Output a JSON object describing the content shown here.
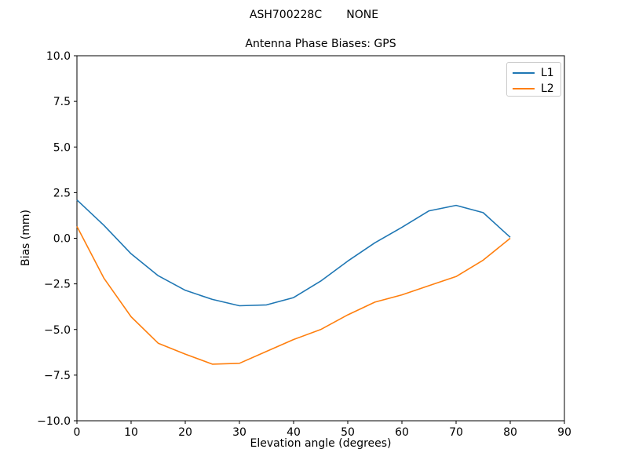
{
  "figure": {
    "suptitle": "ASH700228C       NONE",
    "background": "#ffffff"
  },
  "chart_data": {
    "type": "line",
    "title": "Antenna Phase Biases: GPS",
    "xlabel": "Elevation angle (degrees)",
    "ylabel": "Bias (mm)",
    "xlim": [
      0,
      90
    ],
    "ylim": [
      -10,
      10
    ],
    "x_ticks": [
      0,
      10,
      20,
      30,
      40,
      50,
      60,
      70,
      80,
      90
    ],
    "y_ticks": [
      10.0,
      7.5,
      5.0,
      2.5,
      0.0,
      -2.5,
      -5.0,
      -7.5,
      -10.0
    ],
    "grid": false,
    "legend_position": "upper-right",
    "axis_color": "#000000",
    "x": [
      0,
      5,
      10,
      15,
      20,
      25,
      30,
      35,
      40,
      45,
      50,
      55,
      60,
      65,
      70,
      75,
      80
    ],
    "series": [
      {
        "name": "L1",
        "color": "#1f77b4",
        "values": [
          2.1,
          0.7,
          -0.85,
          -2.05,
          -2.85,
          -3.35,
          -3.7,
          -3.65,
          -3.25,
          -2.35,
          -1.25,
          -0.25,
          0.6,
          1.5,
          1.8,
          1.4,
          0.05
        ]
      },
      {
        "name": "L2",
        "color": "#ff7f0e",
        "values": [
          0.65,
          -2.2,
          -4.3,
          -5.75,
          -6.35,
          -6.9,
          -6.85,
          -6.2,
          -5.55,
          -5.0,
          -4.2,
          -3.5,
          -3.1,
          -2.6,
          -2.1,
          -1.2,
          0.0
        ]
      }
    ]
  }
}
